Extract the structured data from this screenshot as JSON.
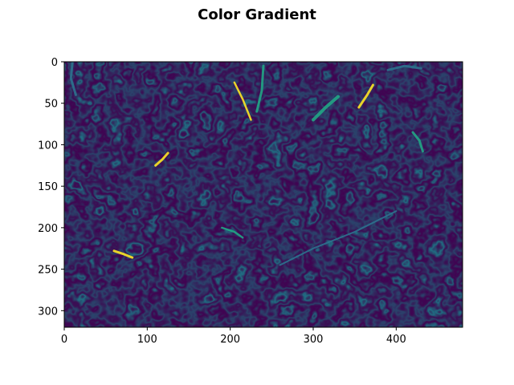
{
  "chart_data": {
    "type": "heatmap",
    "title": "Color Gradient",
    "xlabel": "",
    "ylabel": "",
    "image_size": {
      "width": 480,
      "height": 320
    },
    "xlim": [
      0,
      480
    ],
    "ylim": [
      320,
      0
    ],
    "x_ticks": [
      0,
      100,
      200,
      300,
      400
    ],
    "y_ticks": [
      0,
      50,
      100,
      150,
      200,
      250,
      300
    ],
    "x_tick_labels": [
      "0",
      "100",
      "200",
      "300",
      "400"
    ],
    "y_tick_labels": [
      "0",
      "50",
      "100",
      "150",
      "200",
      "250",
      "300"
    ],
    "colormap": "viridis",
    "colors": {
      "background": "#440154",
      "low": "#46317e",
      "mid": "#2c728e",
      "high": "#21a685",
      "peak": "#fde725"
    },
    "grid": false,
    "legend": "none"
  }
}
